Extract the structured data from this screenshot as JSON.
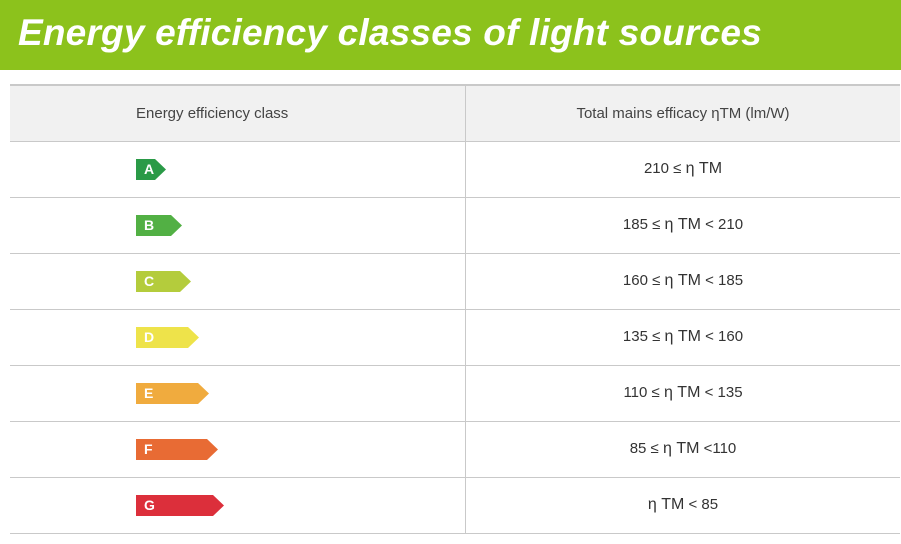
{
  "title": "Energy efficiency classes of light sources",
  "colors": {
    "banner": "#8cc21c",
    "A": "#2a9a47",
    "B": "#52b044",
    "C": "#b4cc3c",
    "D": "#eee34a",
    "E": "#f0ab3e",
    "F": "#e86b34",
    "G": "#dc2f3b"
  },
  "table": {
    "headers": [
      "Energy efficiency class",
      "Total mains efficacy ηTM (lm/W)"
    ],
    "rows": [
      {
        "class": "A",
        "lower": "210 ≤",
        "eta": "η TM",
        "upper": ""
      },
      {
        "class": "B",
        "lower": "185 ≤",
        "eta": "η TM",
        "upper": "< 210"
      },
      {
        "class": "C",
        "lower": "160 ≤",
        "eta": "η TM",
        "upper": "< 185"
      },
      {
        "class": "D",
        "lower": "135 ≤",
        "eta": "η TM",
        "upper": "< 160"
      },
      {
        "class": "E",
        "lower": "110 ≤",
        "eta": "η TM",
        "upper": "< 135"
      },
      {
        "class": "F",
        "lower": "85 ≤",
        "eta": "η TM",
        "upper": "<110"
      },
      {
        "class": "G",
        "lower": "",
        "eta": "η TM",
        "upper": "< 85"
      }
    ]
  }
}
